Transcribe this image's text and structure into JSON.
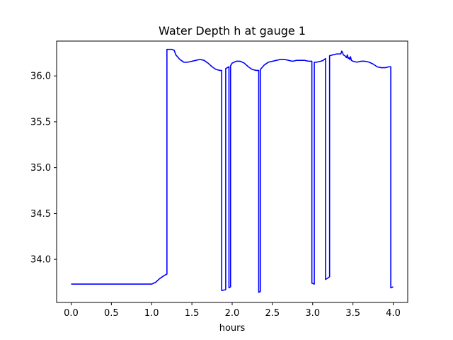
{
  "chart_data": {
    "type": "line",
    "title": "Water Depth h at gauge 1",
    "xlabel": "hours",
    "ylabel": "",
    "xlim": [
      -0.18,
      4.18
    ],
    "ylim": [
      33.53,
      36.38
    ],
    "x_ticks": [
      0.0,
      0.5,
      1.0,
      1.5,
      2.0,
      2.5,
      3.0,
      3.5,
      4.0
    ],
    "x_tick_labels": [
      "0.0",
      "0.5",
      "1.0",
      "1.5",
      "2.0",
      "2.5",
      "3.0",
      "3.5",
      "4.0"
    ],
    "y_ticks": [
      34.0,
      34.5,
      35.0,
      35.5,
      36.0
    ],
    "y_tick_labels": [
      "34.0",
      "34.5",
      "35.0",
      "35.5",
      "36.0"
    ],
    "grid": false,
    "series": [
      {
        "color": "#0000ff",
        "x": [
          0.0,
          0.5,
          1.0,
          1.05,
          1.1,
          1.15,
          1.19,
          1.19,
          1.25,
          1.28,
          1.3,
          1.35,
          1.4,
          1.45,
          1.5,
          1.55,
          1.6,
          1.65,
          1.7,
          1.75,
          1.8,
          1.85,
          1.87,
          1.87,
          1.92,
          1.92,
          1.96,
          1.96,
          1.98,
          1.98,
          2.0,
          2.05,
          2.1,
          2.15,
          2.2,
          2.25,
          2.3,
          2.33,
          2.33,
          2.35,
          2.35,
          2.4,
          2.45,
          2.5,
          2.55,
          2.6,
          2.65,
          2.7,
          2.75,
          2.8,
          2.85,
          2.9,
          2.95,
          2.99,
          2.99,
          3.02,
          3.02,
          3.05,
          3.1,
          3.13,
          3.16,
          3.16,
          3.21,
          3.21,
          3.25,
          3.3,
          3.35,
          3.36,
          3.37,
          3.38,
          3.4,
          3.42,
          3.43,
          3.44,
          3.45,
          3.46,
          3.47,
          3.48,
          3.5,
          3.55,
          3.6,
          3.65,
          3.7,
          3.75,
          3.8,
          3.85,
          3.9,
          3.95,
          3.97,
          3.97,
          4.0
        ],
        "y": [
          33.73,
          33.73,
          33.73,
          33.75,
          33.79,
          33.82,
          33.84,
          36.29,
          36.29,
          36.28,
          36.23,
          36.18,
          36.15,
          36.15,
          36.16,
          36.17,
          36.18,
          36.17,
          36.14,
          36.1,
          36.07,
          36.06,
          36.06,
          33.66,
          33.67,
          36.08,
          36.1,
          33.69,
          33.7,
          36.11,
          36.14,
          36.16,
          36.16,
          36.14,
          36.1,
          36.07,
          36.06,
          36.06,
          33.64,
          33.65,
          36.07,
          36.12,
          36.15,
          36.16,
          36.17,
          36.18,
          36.18,
          36.17,
          36.16,
          36.17,
          36.17,
          36.17,
          36.16,
          36.16,
          33.74,
          33.73,
          36.15,
          36.15,
          36.16,
          36.17,
          36.19,
          33.78,
          33.81,
          36.22,
          36.23,
          36.24,
          36.24,
          36.27,
          36.26,
          36.23,
          36.22,
          36.2,
          36.23,
          36.19,
          36.2,
          36.18,
          36.21,
          36.17,
          36.16,
          36.15,
          36.16,
          36.16,
          36.15,
          36.13,
          36.1,
          36.09,
          36.09,
          36.1,
          36.1,
          33.69,
          33.7
        ]
      }
    ]
  }
}
